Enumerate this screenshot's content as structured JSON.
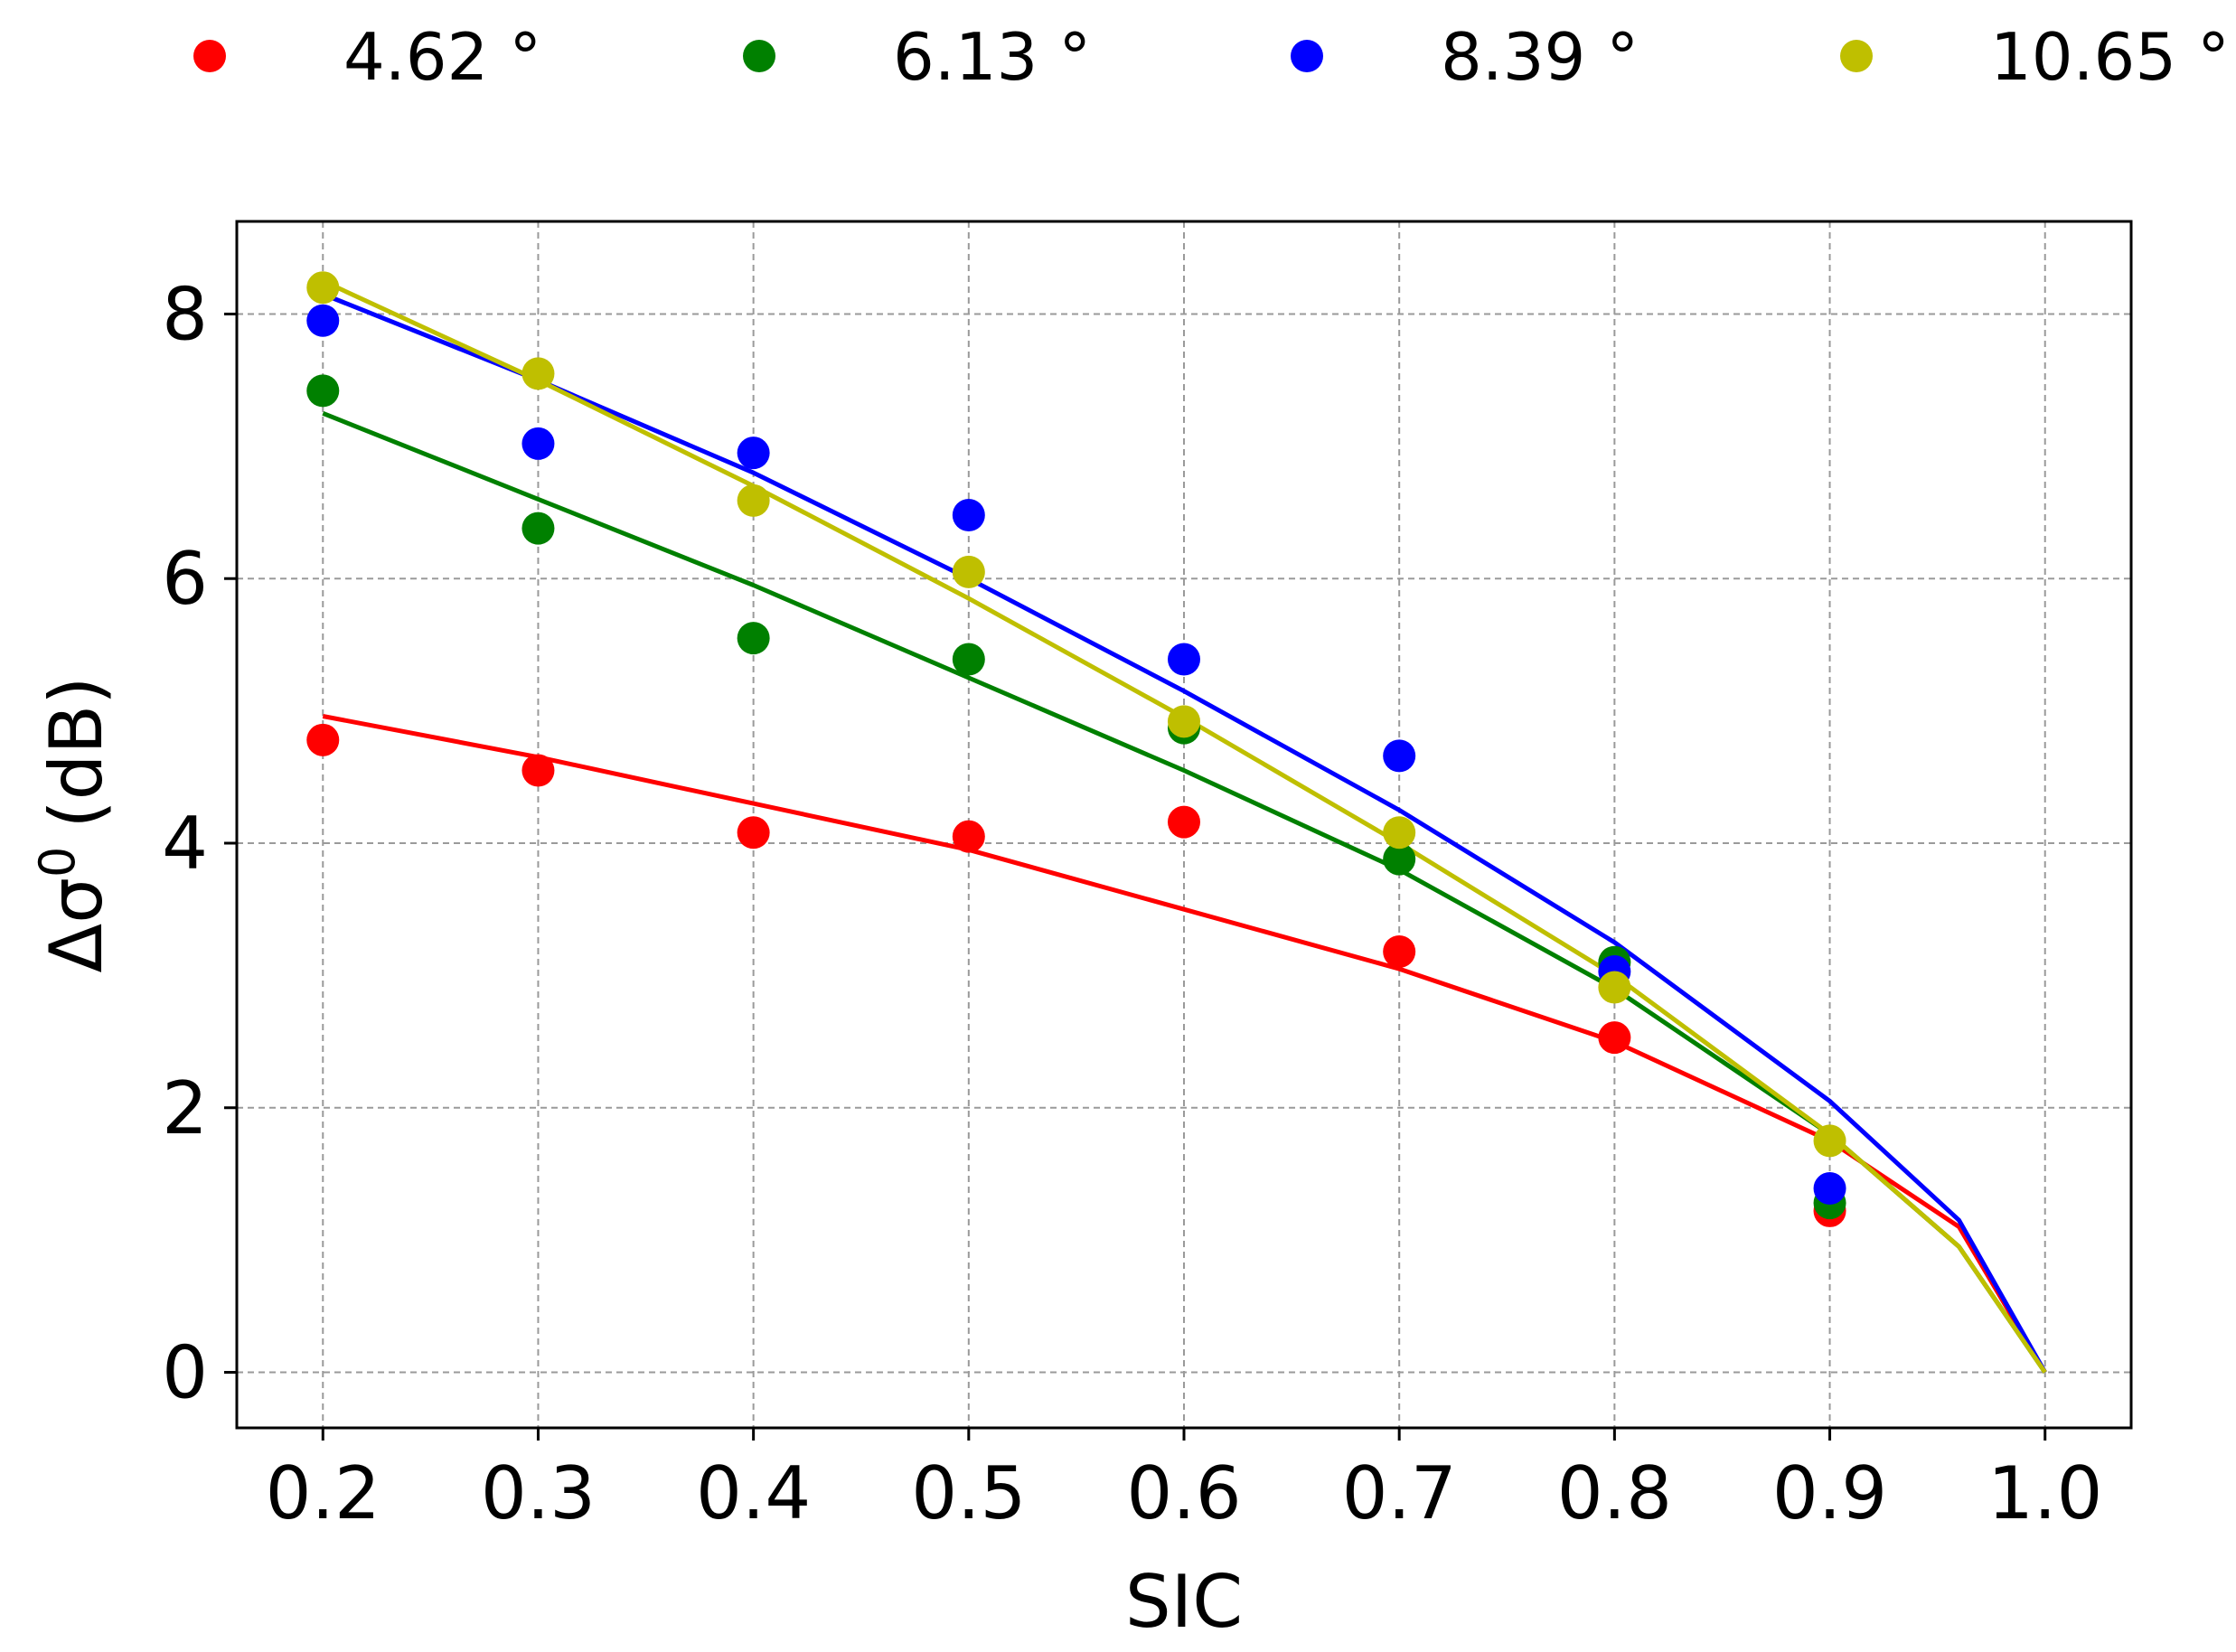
{
  "chart_data": {
    "type": "scatter",
    "xlabel": "SIC",
    "ylabel": "Δσ",
    "ylabel_superscript": "0",
    "ylabel_unit": "(dB)",
    "xlim": [
      0.16,
      1.04
    ],
    "ylim": [
      -0.42,
      8.7
    ],
    "x_ticks": [
      "0.2",
      "0.3",
      "0.4",
      "0.5",
      "0.6",
      "0.7",
      "0.8",
      "0.9",
      "1.0"
    ],
    "y_ticks": [
      "0",
      "2",
      "4",
      "6",
      "8"
    ],
    "grid": true,
    "legend_position": "top",
    "series": [
      {
        "name": "4.62 °",
        "color": "#ff0000",
        "points": {
          "x": [
            0.2,
            0.3,
            0.4,
            0.5,
            0.6,
            0.7,
            0.8,
            0.9
          ],
          "y": [
            4.78,
            4.55,
            4.08,
            4.05,
            4.16,
            3.18,
            2.53,
            1.22
          ]
        },
        "fit": {
          "x": [
            0.2,
            0.3,
            0.4,
            0.5,
            0.6,
            0.7,
            0.8,
            0.9,
            0.96,
            1.0
          ],
          "y": [
            4.96,
            4.65,
            4.3,
            3.95,
            3.5,
            3.05,
            2.5,
            1.75,
            1.1,
            0.0
          ]
        }
      },
      {
        "name": "6.13 °",
        "color": "#008000",
        "points": {
          "x": [
            0.2,
            0.3,
            0.4,
            0.5,
            0.6,
            0.7,
            0.8,
            0.9
          ],
          "y": [
            7.42,
            6.38,
            5.55,
            5.39,
            4.87,
            3.88,
            3.1,
            1.28
          ]
        },
        "fit": {
          "x": [
            0.2,
            0.3,
            0.4,
            0.5,
            0.6,
            0.7,
            0.8,
            0.9,
            0.96,
            1.0
          ],
          "y": [
            7.25,
            6.6,
            5.95,
            5.25,
            4.55,
            3.8,
            2.9,
            1.8,
            0.95,
            0.0
          ]
        }
      },
      {
        "name": "8.39 °",
        "color": "#0000ff",
        "points": {
          "x": [
            0.2,
            0.3,
            0.4,
            0.5,
            0.6,
            0.7,
            0.8,
            0.9
          ],
          "y": [
            7.95,
            7.02,
            6.95,
            6.48,
            5.39,
            4.66,
            3.03,
            1.39
          ]
        },
        "fit": {
          "x": [
            0.2,
            0.3,
            0.4,
            0.5,
            0.6,
            0.7,
            0.8,
            0.9,
            0.96,
            1.0
          ],
          "y": [
            8.15,
            7.5,
            6.8,
            6.0,
            5.15,
            4.25,
            3.25,
            2.05,
            1.15,
            0.0
          ]
        }
      },
      {
        "name": "10.65 °",
        "color": "#bfbf00",
        "points": {
          "x": [
            0.2,
            0.3,
            0.4,
            0.5,
            0.6,
            0.7,
            0.8,
            0.9
          ],
          "y": [
            8.2,
            7.55,
            6.59,
            6.05,
            4.92,
            4.08,
            2.91,
            1.75
          ]
        },
        "fit": {
          "x": [
            0.2,
            0.3,
            0.4,
            0.5,
            0.6,
            0.7,
            0.8,
            0.9,
            0.96,
            1.0
          ],
          "y": [
            8.25,
            7.5,
            6.7,
            5.85,
            4.95,
            4.0,
            3.0,
            1.8,
            0.95,
            0.0
          ]
        }
      }
    ]
  }
}
